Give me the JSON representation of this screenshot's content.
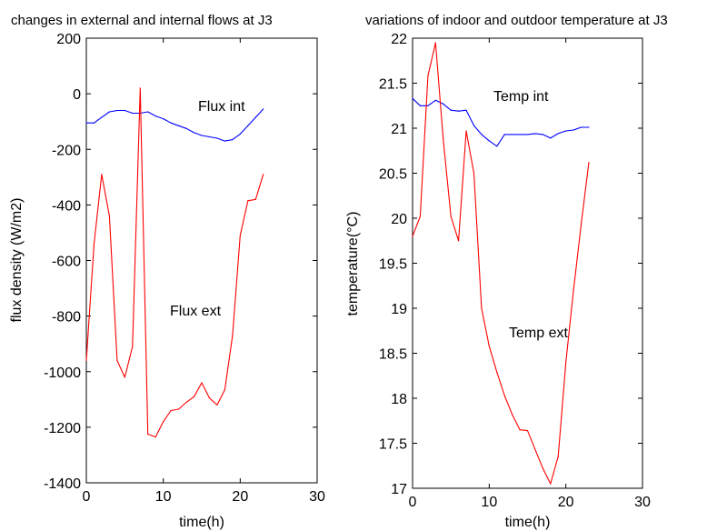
{
  "chart_data": [
    {
      "type": "line",
      "title": "changes in external and internal flows at J3",
      "xlabel": "time(h)",
      "ylabel": "flux density (W/m2)",
      "xlim": [
        0,
        30
      ],
      "ylim": [
        -1400,
        200
      ],
      "xticks": [
        "0",
        "10",
        "20",
        "30"
      ],
      "yticks": [
        "-1400",
        "-1200",
        "-1000",
        "-800",
        "-600",
        "-400",
        "-200",
        "0",
        "200"
      ],
      "grid": false,
      "x": [
        0,
        1,
        2,
        3,
        4,
        5,
        6,
        7,
        8,
        9,
        10,
        11,
        12,
        13,
        14,
        15,
        16,
        17,
        18,
        19,
        20,
        21,
        22,
        23
      ],
      "series": [
        {
          "name": "Flux int",
          "color": "#0000ff",
          "values": [
            -105,
            -105,
            -85,
            -65,
            -60,
            -60,
            -70,
            -70,
            -65,
            -80,
            -90,
            -105,
            -115,
            -125,
            -140,
            -150,
            -155,
            -160,
            -170,
            -165,
            -145,
            -115,
            -85,
            -55
          ]
        },
        {
          "name": "Flux ext",
          "color": "#ff0000",
          "values": [
            -960,
            -540,
            -290,
            -440,
            -960,
            -1020,
            -910,
            20,
            -1225,
            -1235,
            -1180,
            -1140,
            -1135,
            -1110,
            -1090,
            -1040,
            -1095,
            -1120,
            -1065,
            -870,
            -510,
            -385,
            -380,
            -290
          ]
        }
      ],
      "annotations": [
        "Flux int",
        "Flux ext"
      ]
    },
    {
      "type": "line",
      "title": "variations of indoor and outdoor temperature at J3",
      "xlabel": "time(h)",
      "ylabel": "temperature(°C)",
      "xlim": [
        0,
        30
      ],
      "ylim": [
        17,
        22
      ],
      "xticks": [
        "0",
        "10",
        "20",
        "30"
      ],
      "yticks": [
        "17",
        "17.5",
        "18",
        "18.5",
        "19",
        "19.5",
        "20",
        "20.5",
        "21",
        "21.5",
        "22"
      ],
      "grid": false,
      "x": [
        0,
        1,
        2,
        3,
        4,
        5,
        6,
        7,
        8,
        9,
        10,
        11,
        12,
        13,
        14,
        15,
        16,
        17,
        18,
        19,
        20,
        21,
        22,
        23
      ],
      "series": [
        {
          "name": "Temp int",
          "color": "#0000ff",
          "values": [
            21.33,
            21.25,
            21.25,
            21.31,
            21.27,
            21.2,
            21.19,
            21.2,
            21.03,
            20.93,
            20.86,
            20.8,
            20.93,
            20.93,
            20.93,
            20.93,
            20.94,
            20.93,
            20.89,
            20.94,
            20.97,
            20.98,
            21.01,
            21.01
          ]
        },
        {
          "name": "Temp ext",
          "color": "#ff0000",
          "values": [
            19.8,
            20.02,
            21.58,
            21.95,
            20.88,
            20.02,
            19.75,
            20.97,
            20.5,
            19.0,
            18.58,
            18.29,
            18.03,
            17.82,
            17.65,
            17.64,
            17.43,
            17.22,
            17.05,
            17.35,
            18.4,
            19.2,
            19.93,
            20.62
          ]
        }
      ],
      "annotations": [
        "Temp int",
        "Temp ext"
      ]
    }
  ]
}
